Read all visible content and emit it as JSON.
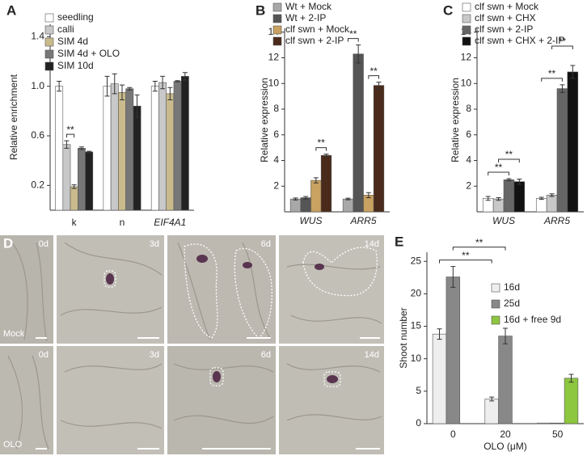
{
  "chart_data": [
    {
      "type": "bar",
      "label": "A",
      "ylabel": "Relative enrichment",
      "categories": [
        "k",
        "n",
        "EIF4A1"
      ],
      "ylim": [
        0,
        1.5
      ],
      "yticks": [
        0.2,
        0.6,
        {
          "value": 1,
          "label": "1.0"
        },
        1.4
      ],
      "series": [
        {
          "name": "seedling",
          "color": "#ffffff",
          "values": [
            1.0,
            1.0,
            1.0
          ],
          "errors": [
            0.04,
            0.08,
            0.04
          ]
        },
        {
          "name": "calli",
          "color": "#c8c8c8",
          "values": [
            0.53,
            1.02,
            1.03
          ],
          "errors": [
            0.03,
            0.08,
            0.05
          ]
        },
        {
          "name": "SIM 4d",
          "color": "#c9bb8c",
          "values": [
            0.19,
            0.95,
            0.94
          ],
          "errors": [
            0.015,
            0.06,
            0.05
          ]
        },
        {
          "name": "SIM 4d + OLO",
          "color": "#777777",
          "values": [
            0.5,
            0.98,
            1.04
          ],
          "errors": [
            0.01,
            0.01,
            0.005
          ]
        },
        {
          "name": "SIM 10d",
          "color": "#222222",
          "values": [
            0.47,
            0.84,
            1.08
          ],
          "errors": [
            0.005,
            0.09,
            0.03
          ]
        }
      ],
      "annotations": [
        "**"
      ]
    },
    {
      "type": "bar",
      "label": "B",
      "ylabel": "Relative expression",
      "categories": [
        "WUS",
        "ARR5"
      ],
      "ylim": [
        0,
        14.3
      ],
      "yticks": [
        2,
        4,
        6,
        8,
        10,
        12,
        14
      ],
      "series": [
        {
          "name": "Wt + Mock",
          "color": "#a8a8a8",
          "values": [
            1.0,
            1.0
          ],
          "errors": [
            0.08,
            0.06
          ]
        },
        {
          "name": "Wt + 2-IP",
          "color": "#555555",
          "values": [
            1.1,
            12.3
          ],
          "errors": [
            0.1,
            0.7
          ]
        },
        {
          "name": "clf swn + Mock",
          "color": "#c9a160",
          "values": [
            2.45,
            1.3
          ],
          "errors": [
            0.2,
            0.2
          ]
        },
        {
          "name": "clf swn + 2-IP",
          "color": "#4a2a1a",
          "values": [
            4.4,
            9.85
          ],
          "errors": [
            0.1,
            0.25
          ]
        }
      ],
      "annotations": [
        "**",
        "**",
        "**"
      ]
    },
    {
      "type": "bar",
      "label": "C",
      "ylabel": "Relative expression",
      "categories": [
        "WUS",
        "ARR5"
      ],
      "ylim": [
        0,
        14.3
      ],
      "yticks": [
        2,
        4,
        6,
        8,
        10,
        12,
        14
      ],
      "series": [
        {
          "name": "clf swn + Mock",
          "color": "#ffffff",
          "values": [
            1.05,
            1.05
          ],
          "errors": [
            0.15,
            0.08
          ]
        },
        {
          "name": "clf swn + CHX",
          "color": "#c8c8c8",
          "values": [
            1.0,
            1.3
          ],
          "errors": [
            0.1,
            0.1
          ]
        },
        {
          "name": "clf swn + 2-IP",
          "color": "#666666",
          "values": [
            2.5,
            9.6
          ],
          "errors": [
            0.08,
            0.3
          ]
        },
        {
          "name": "clf swn + CHX + 2-IP",
          "color": "#111111",
          "values": [
            2.35,
            10.9
          ],
          "errors": [
            0.2,
            0.5
          ]
        }
      ],
      "annotations": [
        "**",
        "**",
        "**",
        "**"
      ]
    },
    {
      "type": "bar",
      "label": "E",
      "ylabel": "Shoot number",
      "xlabel": "OLO (μM)",
      "categories": [
        "0",
        "20",
        "50"
      ],
      "ylim": [
        0,
        26.4
      ],
      "yticks": [
        0,
        5,
        10,
        15,
        20,
        25
      ],
      "series": [
        {
          "name": "16d",
          "color": "#eeeeee",
          "values": [
            13.8,
            3.8,
            0.1
          ],
          "errors": [
            0.8,
            0.3,
            0
          ]
        },
        {
          "name": "25d",
          "color": "#888888",
          "values": [
            22.6,
            13.5,
            0.1
          ],
          "errors": [
            1.6,
            1.2,
            0
          ]
        },
        {
          "name": "16d + free 9d",
          "color": "#8dc63f",
          "values": [
            null,
            null,
            7.0
          ],
          "errors": [
            null,
            null,
            0.6
          ]
        }
      ],
      "annotations": [
        "**",
        "**"
      ]
    }
  ],
  "micrographs": {
    "label": "D",
    "times": [
      "0d",
      "3d",
      "6d",
      "14d",
      "0d",
      "3d",
      "6d",
      "14d"
    ],
    "rows": [
      "Mock",
      "OLO"
    ]
  }
}
